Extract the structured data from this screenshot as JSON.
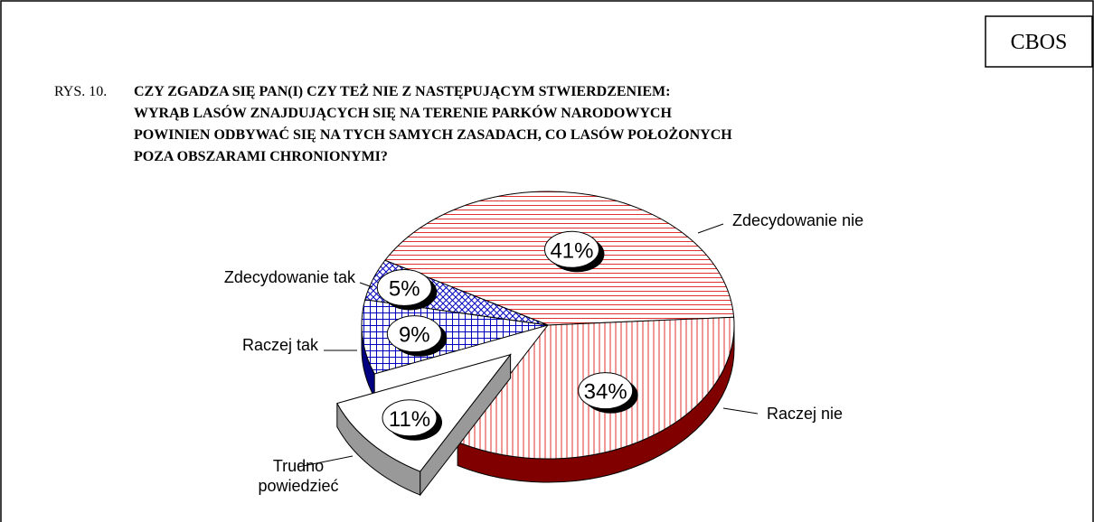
{
  "chart_data": {
    "type": "pie",
    "source": "CBOS",
    "title_prefix": "RYS. 10.",
    "title": [
      "CZY ZGADZA SIĘ PAN(I) CZY TEŻ NIE Z NASTĘPUJĄCYM STWIERDZENIEM:",
      "WYRĄB LASÓW ZNAJDUJĄCYCH SIĘ NA TERENIE PARKÓW NARODOWYCH",
      "POWINIEN ODBYWAĆ SIĘ NA TYCH SAMYCH ZASADACH, CO LASÓW POŁOŻONYCH",
      "POZA OBSZARAMI CHRONIONYMI?"
    ],
    "categories": [
      "Zdecydowanie nie",
      "Raczej nie",
      "Trudno powiedzieć",
      "Raczej tak",
      "Zdecydowanie tak"
    ],
    "values": [
      41,
      34,
      11,
      9,
      5
    ],
    "value_labels": [
      "41%",
      "34%",
      "11%",
      "9%",
      "5%"
    ],
    "colors": [
      "#e03030",
      "#e03030",
      "#ffffff",
      "#0000c0",
      "#0000c0"
    ],
    "side_colors": [
      "#800000",
      "#800000",
      "#999999",
      "#000080",
      "#000080"
    ],
    "patterns": [
      "hlines",
      "vlines",
      "none",
      "grid",
      "cross"
    ],
    "exploded": [
      false,
      false,
      true,
      false,
      false
    ]
  }
}
